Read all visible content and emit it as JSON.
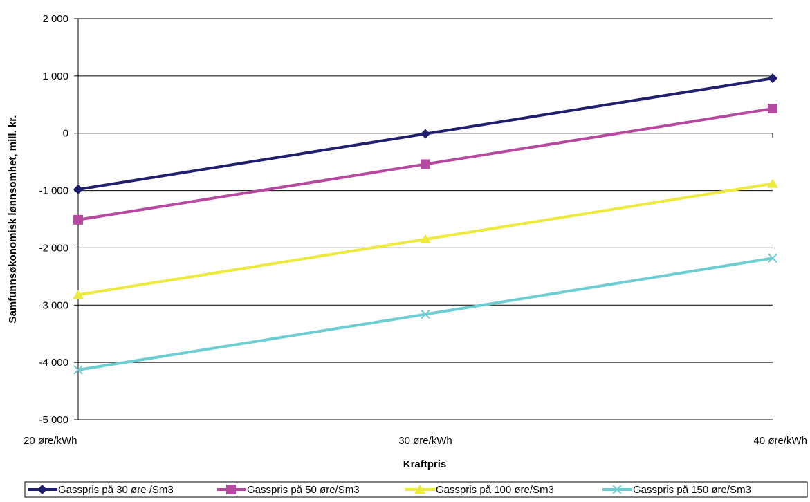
{
  "chart_data": {
    "type": "line",
    "title": "",
    "xlabel": "Kraftpris",
    "ylabel": "Samfunnsøkonomisk lønnsomhet, mill. kr.",
    "categories": [
      "20 øre/kWh",
      "30 øre/kWh",
      "40 øre/kWh"
    ],
    "ylim": [
      -5000,
      2000
    ],
    "yticks": [
      2000,
      1000,
      0,
      -1000,
      -2000,
      -3000,
      -4000,
      -5000
    ],
    "ytick_labels": [
      "2 000",
      "1 000",
      "0",
      "-1 000",
      "-2 000",
      "-3 000",
      "-4 000",
      "-5 000"
    ],
    "grid": true,
    "legend_position": "bottom",
    "series": [
      {
        "name": "Gasspris på 30 øre /Sm3",
        "values": [
          -980,
          -10,
          960
        ],
        "color": "#1f1f6e",
        "marker": "diamond"
      },
      {
        "name": "Gasspris på 50 øre/Sm3",
        "values": [
          -1510,
          -540,
          430
        ],
        "color": "#b5499f",
        "marker": "square"
      },
      {
        "name": "Gasspris på 100 øre/Sm3",
        "values": [
          -2820,
          -1850,
          -880
        ],
        "color": "#ecea3d",
        "marker": "triangle"
      },
      {
        "name": "Gasspris på 150 øre/Sm3",
        "values": [
          -4130,
          -3160,
          -2180
        ],
        "color": "#6ccdd3",
        "marker": "x"
      }
    ]
  }
}
